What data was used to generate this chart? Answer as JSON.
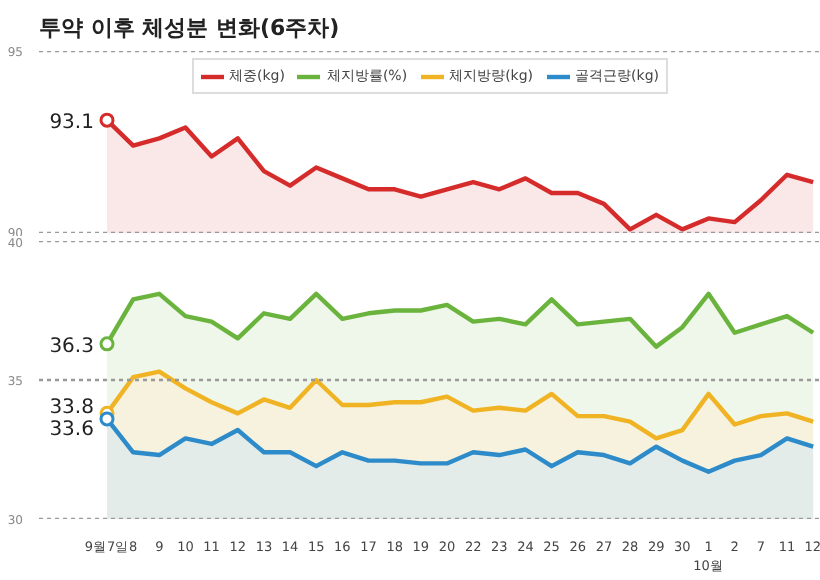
{
  "chart_data": [
    {
      "type": "area",
      "title": "투약 이후 체성분 변화(6주차)",
      "categories": [
        null,
        null,
        null,
        null,
        null,
        null,
        null,
        null,
        null,
        null,
        null,
        null,
        null,
        null,
        null,
        null,
        null,
        null,
        null,
        null,
        null,
        null,
        null,
        null,
        null,
        null,
        null,
        null
      ],
      "ylim": [
        90,
        95
      ],
      "yticks": [
        90,
        95
      ],
      "grid": "y",
      "legend": "top",
      "series": [
        {
          "name": "체중(kg)",
          "color": "#d62b2b",
          "values": [
            93.1,
            92.4,
            92.6,
            92.9,
            92.1,
            92.6,
            91.7,
            91.3,
            91.8,
            91.5,
            91.2,
            91.2,
            91.0,
            91.2,
            91.4,
            91.2,
            91.5,
            91.1,
            91.1,
            90.8,
            90.1,
            90.5,
            90.1,
            90.4,
            90.3,
            90.9,
            91.6,
            91.4
          ],
          "value_labels": [
            "93.1",
            null,
            null,
            null,
            null,
            null,
            null,
            null,
            null,
            null,
            null,
            null,
            null,
            null,
            null,
            null,
            null,
            null,
            null,
            null,
            null,
            null,
            null,
            null,
            null,
            null,
            null,
            null
          ]
        }
      ]
    },
    {
      "type": "area",
      "categories": [
        "9월7일",
        "8",
        "9",
        "10",
        "11",
        "12",
        "13",
        "14",
        "15",
        "16",
        "17",
        "18",
        "19",
        "20",
        "22",
        "23",
        "24",
        "25",
        "26",
        "27",
        "28",
        "29",
        "30",
        "1\n10월",
        "2",
        "7",
        "11",
        "12"
      ],
      "ylim": [
        30,
        40
      ],
      "yticks": [
        30,
        35,
        40
      ],
      "grid": "y",
      "legend": "top",
      "series": [
        {
          "name": "체지방률(%)",
          "color": "#6ab43e",
          "values": [
            36.3,
            37.9,
            38.1,
            37.3,
            37.1,
            36.5,
            37.4,
            37.2,
            38.1,
            37.2,
            37.4,
            37.5,
            37.5,
            37.7,
            37.1,
            37.2,
            37.0,
            37.9,
            37.0,
            37.1,
            37.2,
            36.2,
            36.9,
            38.1,
            36.7,
            37.0,
            37.3,
            36.7
          ],
          "value_labels": [
            "36.3",
            null,
            null,
            null,
            null,
            null,
            null,
            null,
            null,
            null,
            null,
            null,
            null,
            null,
            null,
            null,
            null,
            null,
            null,
            null,
            null,
            null,
            null,
            null,
            null,
            null,
            null,
            null
          ]
        },
        {
          "name": "체지방량(kg)",
          "color": "#f0b323",
          "values": [
            33.8,
            35.1,
            35.3,
            34.7,
            34.2,
            33.8,
            34.3,
            34.0,
            35.0,
            34.1,
            34.1,
            34.2,
            34.2,
            34.4,
            33.9,
            34.0,
            33.9,
            34.5,
            33.7,
            33.7,
            33.5,
            32.9,
            33.2,
            34.5,
            33.4,
            33.7,
            33.8,
            33.5
          ],
          "value_labels": [
            "33.8",
            null,
            null,
            null,
            null,
            null,
            null,
            null,
            null,
            null,
            null,
            null,
            null,
            null,
            null,
            null,
            null,
            null,
            null,
            null,
            null,
            null,
            null,
            null,
            null,
            null,
            null,
            null
          ]
        },
        {
          "name": "골격근량(kg)",
          "color": "#2e8bc9",
          "values": [
            33.6,
            32.4,
            32.3,
            32.9,
            32.7,
            33.2,
            32.4,
            32.4,
            31.9,
            32.4,
            32.1,
            32.1,
            32.0,
            32.0,
            32.4,
            32.3,
            32.5,
            31.9,
            32.4,
            32.3,
            32.0,
            32.6,
            32.1,
            31.7,
            32.1,
            32.3,
            32.9,
            32.6
          ],
          "value_labels": [
            "33.6",
            null,
            null,
            null,
            null,
            null,
            null,
            null,
            null,
            null,
            null,
            null,
            null,
            null,
            null,
            null,
            null,
            null,
            null,
            null,
            null,
            null,
            null,
            null,
            null,
            null,
            null,
            null
          ]
        }
      ]
    }
  ]
}
